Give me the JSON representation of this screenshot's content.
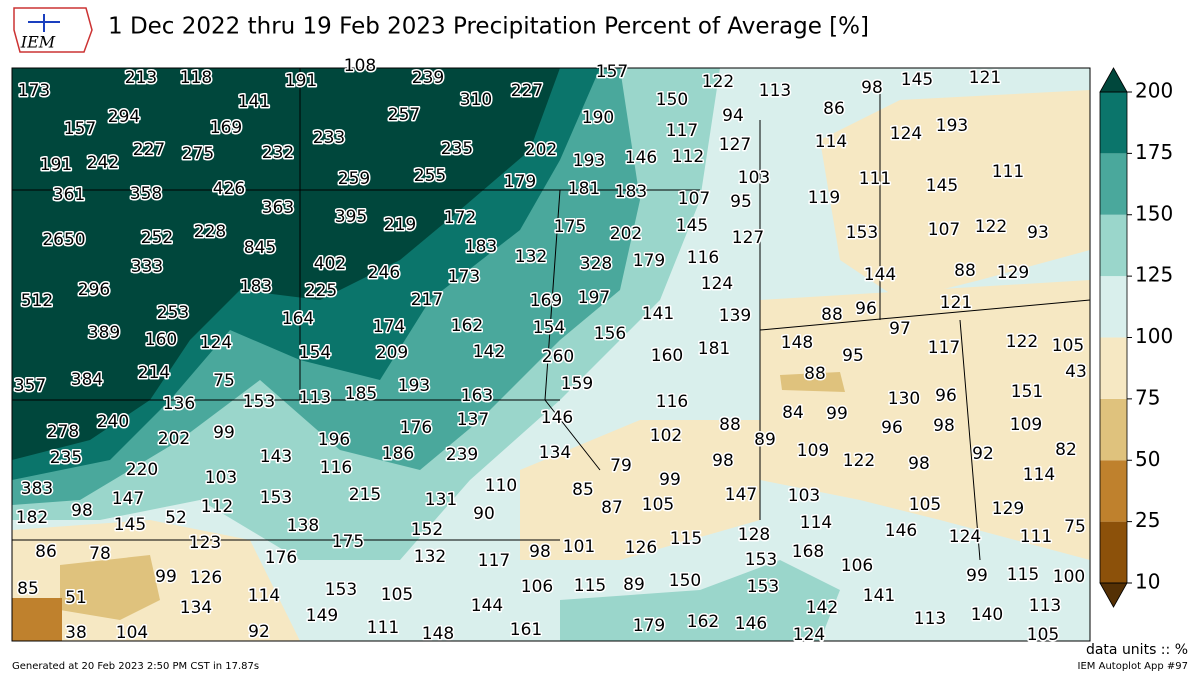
{
  "header": {
    "title": "1 Dec 2022 thru 19 Feb 2023 Precipitation Percent of Average [%]",
    "logo_text": "IEM"
  },
  "map": {
    "values": [
      173,
      213,
      118,
      191,
      108,
      239,
      310,
      227,
      157,
      122,
      113,
      98,
      145,
      121,
      294,
      157,
      141,
      257,
      190,
      150,
      94,
      86,
      227,
      275,
      169,
      232,
      233,
      235,
      202,
      193,
      146,
      112,
      117,
      127,
      114,
      124,
      193,
      191,
      242,
      259,
      255,
      179,
      181,
      183,
      103,
      111,
      145,
      111,
      361,
      358,
      426,
      363,
      395,
      219,
      172,
      175,
      107,
      95,
      119,
      2650,
      252,
      228,
      845,
      183,
      132,
      202,
      145,
      127,
      153,
      107,
      122,
      93,
      333,
      402,
      246,
      173,
      328,
      179,
      116,
      144,
      88,
      129,
      512,
      296,
      183,
      225,
      217,
      169,
      197,
      124,
      121,
      253,
      164,
      174,
      162,
      154,
      156,
      141,
      139,
      88,
      96,
      97,
      389,
      160,
      124,
      154,
      209,
      142,
      260,
      160,
      181,
      148,
      95,
      117,
      122,
      105,
      357,
      384,
      214,
      75,
      193,
      159,
      88,
      43,
      136,
      153,
      113,
      185,
      163,
      116,
      84,
      99,
      130,
      96,
      151,
      278,
      240,
      99,
      176,
      137,
      146,
      88,
      96,
      98,
      109,
      202,
      196,
      186,
      239,
      102,
      89,
      109,
      122,
      98,
      92,
      82,
      235,
      220,
      143,
      116,
      134,
      79,
      98,
      114,
      383,
      103,
      110,
      99,
      85,
      147,
      103,
      147,
      153,
      215,
      131,
      105,
      87,
      105,
      129,
      182,
      98,
      145,
      52,
      112,
      138,
      90,
      114,
      146,
      75,
      86,
      78,
      123,
      176,
      175,
      152,
      132,
      117,
      98,
      101,
      126,
      115,
      128,
      153,
      168,
      106,
      124,
      111,
      85,
      99,
      126,
      153,
      105,
      106,
      115,
      89,
      150,
      153,
      141,
      99,
      115,
      100,
      51,
      134,
      114,
      149,
      144,
      142,
      113,
      140,
      113,
      38,
      104,
      92,
      111,
      148,
      161,
      179,
      162,
      146,
      124,
      105
    ]
  },
  "colorbar": {
    "ticks": [
      10,
      25,
      50,
      75,
      100,
      125,
      150,
      175,
      200
    ],
    "colors": [
      "#8c510a",
      "#bf812d",
      "#dfc27d",
      "#f6e8c3",
      "#d9efec",
      "#9ad6cb",
      "#4aa89c",
      "#0b756b"
    ],
    "under_color": "#543005",
    "over_color": "#00473c"
  },
  "units_note": "data units :: %",
  "footer": {
    "generated": "Generated at 20 Feb 2023 2:50 PM CST in 17.87s",
    "app": "IEM Autoplot App #97"
  }
}
